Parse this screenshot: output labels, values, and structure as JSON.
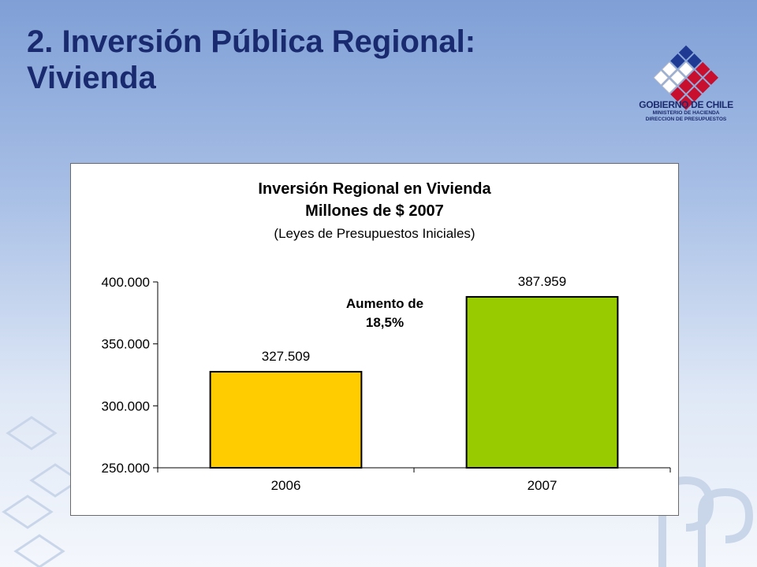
{
  "slide": {
    "title": "2. Inversión Pública Regional:\nVivienda"
  },
  "logo": {
    "line1": "GOBIERNO DE CHILE",
    "line2": "MINISTERIO DE HACIENDA",
    "line3": "DIRECCION DE PRESUPUESTOS",
    "colors": [
      "#c8102e",
      "#1f3a93",
      "#ffffff"
    ]
  },
  "chart_data": {
    "type": "bar",
    "title": "Inversión Regional en Vivienda",
    "subtitle": "Millones de $ 2007",
    "subtitle2": "(Leyes de Presupuestos Iniciales)",
    "categories": [
      "2006",
      "2007"
    ],
    "values": [
      327509,
      387959
    ],
    "value_labels": [
      "327.509",
      "387.959"
    ],
    "bar_colors": [
      "#ffcc00",
      "#99cc00"
    ],
    "ylim": [
      250000,
      400000
    ],
    "yticks": [
      250000,
      300000,
      350000,
      400000
    ],
    "ytick_labels": [
      "250.000",
      "300.000",
      "350.000",
      "400.000"
    ],
    "annotation": "Aumento de\n18,5%",
    "xlabel": "",
    "ylabel": "",
    "grid": false,
    "legend": "none"
  }
}
